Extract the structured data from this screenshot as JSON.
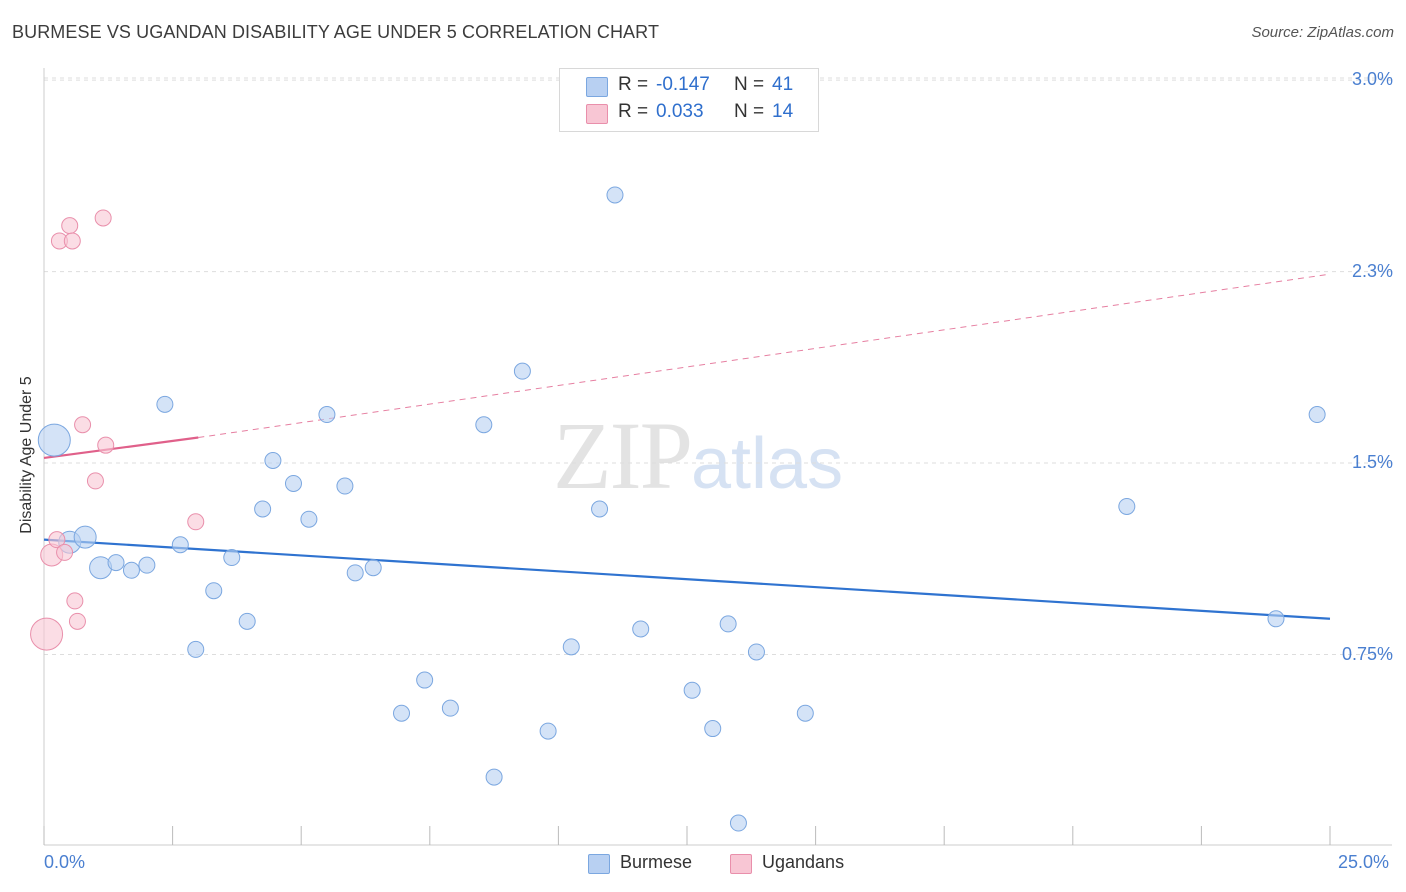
{
  "header": {
    "title": "BURMESE VS UGANDAN DISABILITY AGE UNDER 5 CORRELATION CHART",
    "source": "Source: ZipAtlas.com"
  },
  "watermark": {
    "zip": "ZIP",
    "atlas": "atlas"
  },
  "legend": {
    "rows": [
      {
        "r_label": "R =",
        "r_value": "-0.147",
        "n_label": "N =",
        "n_value": "41"
      },
      {
        "r_label": "R =",
        "r_value": "0.033",
        "n_label": "N =",
        "n_value": "14"
      }
    ],
    "bottom": [
      "Burmese",
      "Ugandans"
    ]
  },
  "colors": {
    "burmese_fill": "#b8d0f2",
    "burmese_stroke": "#7ba7e0",
    "burmese_line": "#2f73d0",
    "ugandan_fill": "#f8c6d4",
    "ugandan_stroke": "#e98fab",
    "ugandan_line": "#e0608a",
    "tick_text": "#4a7fd0",
    "grid": "#dddddd"
  },
  "chart_data": {
    "type": "scatter",
    "title": "BURMESE VS UGANDAN DISABILITY AGE UNDER 5 CORRELATION CHART",
    "xlabel": "",
    "ylabel": "Disability Age Under 5",
    "xlim": [
      0,
      25
    ],
    "ylim": [
      0,
      3.0
    ],
    "x_tick_labels": [
      "0.0%",
      "25.0%"
    ],
    "y_ticks": [
      {
        "value": 0.75,
        "label": "0.75%"
      },
      {
        "value": 1.5,
        "label": "1.5%"
      },
      {
        "value": 2.25,
        "label": "2.3%"
      },
      {
        "value": 3.0,
        "label": "3.0%"
      }
    ],
    "series": [
      {
        "name": "Burmese",
        "r": -0.147,
        "n": 41,
        "trend": {
          "x": [
            0,
            25
          ],
          "y": [
            1.2,
            0.89
          ]
        },
        "points": [
          {
            "x": 0.2,
            "y": 1.59,
            "size": "large"
          },
          {
            "x": 0.5,
            "y": 1.19,
            "size": "medium"
          },
          {
            "x": 0.8,
            "y": 1.21,
            "size": "medium"
          },
          {
            "x": 1.1,
            "y": 1.09,
            "size": "medium"
          },
          {
            "x": 1.4,
            "y": 1.11
          },
          {
            "x": 1.7,
            "y": 1.08
          },
          {
            "x": 2.0,
            "y": 1.1
          },
          {
            "x": 2.35,
            "y": 1.73
          },
          {
            "x": 2.65,
            "y": 1.18
          },
          {
            "x": 2.95,
            "y": 0.77
          },
          {
            "x": 3.3,
            "y": 1.0
          },
          {
            "x": 3.65,
            "y": 1.13
          },
          {
            "x": 3.95,
            "y": 0.88
          },
          {
            "x": 4.25,
            "y": 1.32
          },
          {
            "x": 4.45,
            "y": 1.51
          },
          {
            "x": 4.85,
            "y": 1.42
          },
          {
            "x": 5.15,
            "y": 1.28
          },
          {
            "x": 5.5,
            "y": 1.69
          },
          {
            "x": 5.85,
            "y": 1.41
          },
          {
            "x": 6.05,
            "y": 1.07
          },
          {
            "x": 6.4,
            "y": 1.09
          },
          {
            "x": 6.95,
            "y": 0.52
          },
          {
            "x": 7.4,
            "y": 0.65
          },
          {
            "x": 7.9,
            "y": 0.54
          },
          {
            "x": 8.55,
            "y": 1.65
          },
          {
            "x": 8.75,
            "y": 0.27
          },
          {
            "x": 9.3,
            "y": 1.86
          },
          {
            "x": 9.8,
            "y": 0.45
          },
          {
            "x": 10.25,
            "y": 0.78
          },
          {
            "x": 10.8,
            "y": 1.32
          },
          {
            "x": 11.1,
            "y": 2.55
          },
          {
            "x": 11.6,
            "y": 0.85
          },
          {
            "x": 12.6,
            "y": 0.61
          },
          {
            "x": 13.0,
            "y": 0.46
          },
          {
            "x": 13.3,
            "y": 0.87
          },
          {
            "x": 13.5,
            "y": 0.09
          },
          {
            "x": 13.85,
            "y": 0.76
          },
          {
            "x": 14.8,
            "y": 0.52
          },
          {
            "x": 21.05,
            "y": 1.33
          },
          {
            "x": 23.95,
            "y": 0.89
          },
          {
            "x": 24.75,
            "y": 1.69
          }
        ]
      },
      {
        "name": "Ugandans",
        "r": 0.033,
        "n": 14,
        "trend": {
          "x": [
            0,
            3.0,
            25
          ],
          "y": [
            1.52,
            1.6,
            2.24
          ]
        },
        "points": [
          {
            "x": 0.05,
            "y": 0.83,
            "size": "large"
          },
          {
            "x": 0.15,
            "y": 1.14,
            "size": "medium"
          },
          {
            "x": 0.25,
            "y": 1.2
          },
          {
            "x": 0.3,
            "y": 2.37
          },
          {
            "x": 0.4,
            "y": 1.15
          },
          {
            "x": 0.5,
            "y": 2.43
          },
          {
            "x": 0.55,
            "y": 2.37
          },
          {
            "x": 0.6,
            "y": 0.96
          },
          {
            "x": 0.65,
            "y": 0.88
          },
          {
            "x": 0.75,
            "y": 1.65
          },
          {
            "x": 1.0,
            "y": 1.43
          },
          {
            "x": 1.15,
            "y": 2.46
          },
          {
            "x": 1.2,
            "y": 1.57
          },
          {
            "x": 2.95,
            "y": 1.27
          }
        ]
      }
    ]
  }
}
